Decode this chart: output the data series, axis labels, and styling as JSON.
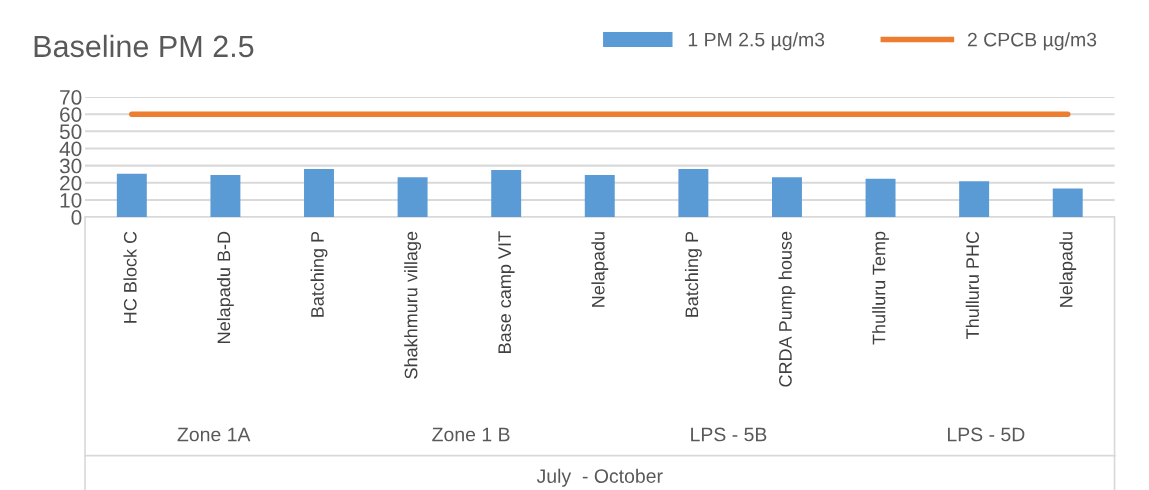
{
  "chart_data": {
    "type": "bar",
    "title": "Baseline PM 2.5",
    "xlabel": "July  - October",
    "categories": [
      "HC Block C",
      "Nelapadu B-D",
      "Batching P",
      "Shakhmuru village",
      "Base camp VIT",
      "Nelapadu",
      "Batching P",
      "CRDA Pump house",
      "Thulluru Temp",
      "Thulluru PHC",
      "Nelapadu"
    ],
    "series": [
      {
        "name": "1 PM 2.5 µg/m3",
        "color": "#5b9bd5",
        "values": [
          25.3,
          24.5,
          28.1,
          23.2,
          27.4,
          24.5,
          28.1,
          23.2,
          22.3,
          20.9,
          16.6
        ]
      },
      {
        "name": "2 CPCB µg/m3",
        "type": "line",
        "color": "#ed7d31",
        "values": [
          60,
          60,
          60,
          60,
          60,
          60,
          60,
          60,
          60,
          60,
          60
        ]
      }
    ],
    "annotations": [
      "Zone 1A",
      "Zone 1 B",
      "LPS - 5B",
      "LPS - 5D"
    ],
    "ylim": [
      0,
      70
    ],
    "yticks": [
      0,
      10,
      20,
      30,
      40,
      50,
      60,
      70
    ],
    "grid": "y",
    "legend": "top right"
  }
}
